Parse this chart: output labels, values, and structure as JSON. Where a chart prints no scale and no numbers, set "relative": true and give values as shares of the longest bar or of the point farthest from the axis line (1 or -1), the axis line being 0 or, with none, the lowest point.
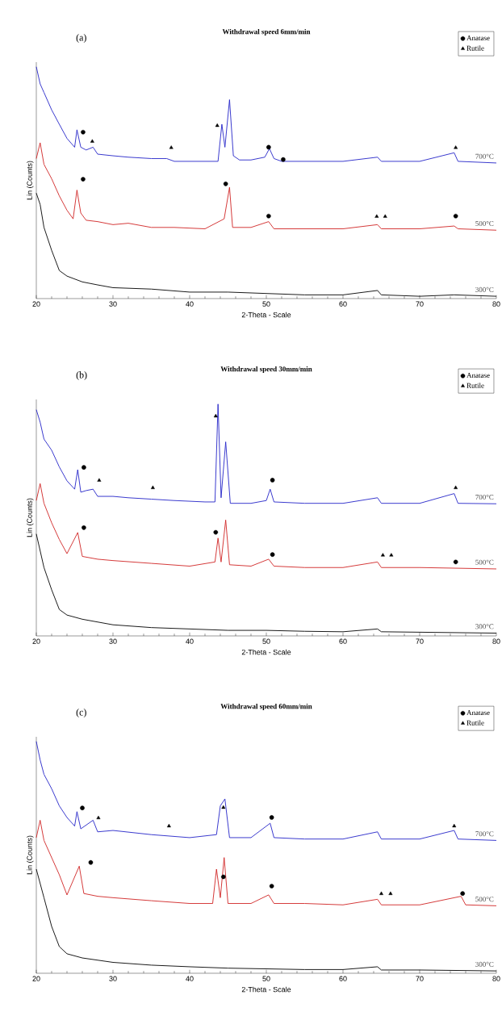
{
  "chart_data": [
    {
      "type": "line",
      "title": "Withdrawal speed 6mm/min",
      "xlabel": "2-Theta - Scale",
      "ylabel": "Lin (Counts)",
      "annotations": [
        "(a)"
      ],
      "xlim": [
        20,
        80
      ],
      "xticks": [
        20,
        30,
        40,
        50,
        60,
        70,
        80
      ],
      "relative": true,
      "tick_labels": "x",
      "legend": "top right",
      "marker": "none",
      "series": [
        {
          "name": "700°C",
          "color": "#2424c8",
          "x": [
            20,
            20.5,
            21,
            22,
            23,
            24,
            25,
            25.3,
            25.8,
            26.5,
            27.4,
            28,
            30,
            32,
            35,
            37,
            38,
            40,
            42,
            43,
            43.7,
            44.2,
            44.6,
            45.2,
            45.7,
            46.5,
            48,
            49.8,
            50.4,
            51,
            52,
            55,
            60,
            64.5,
            65,
            70,
            74.5,
            75,
            80
          ],
          "values": [
            1.0,
            0.926,
            0.889,
            0.814,
            0.752,
            0.691,
            0.653,
            0.728,
            0.653,
            0.641,
            0.653,
            0.623,
            0.616,
            0.61,
            0.604,
            0.604,
            0.592,
            0.592,
            0.592,
            0.592,
            0.592,
            0.752,
            0.653,
            0.858,
            0.616,
            0.598,
            0.598,
            0.61,
            0.647,
            0.604,
            0.592,
            0.592,
            0.592,
            0.61,
            0.592,
            0.592,
            0.629,
            0.592,
            0.585
          ]
        },
        {
          "name": "500°C",
          "color": "#d02424",
          "x": [
            20,
            20.5,
            21,
            22,
            23,
            24,
            24.8,
            25.3,
            25.8,
            26.5,
            28,
            30,
            32,
            35,
            38,
            42,
            44.5,
            45.2,
            45.6,
            48,
            50.3,
            51,
            55,
            60,
            64.5,
            65,
            70,
            74.5,
            75,
            80
          ],
          "values": [
            0.604,
            0.672,
            0.579,
            0.517,
            0.443,
            0.381,
            0.344,
            0.468,
            0.369,
            0.338,
            0.332,
            0.319,
            0.325,
            0.307,
            0.307,
            0.301,
            0.344,
            0.48,
            0.307,
            0.307,
            0.332,
            0.301,
            0.301,
            0.301,
            0.319,
            0.301,
            0.301,
            0.313,
            0.301,
            0.295
          ]
        },
        {
          "name": "300°C",
          "color": "#000000",
          "x": [
            20,
            20.5,
            21,
            22,
            23,
            24,
            26,
            28,
            30,
            35,
            40,
            45,
            50,
            55,
            60,
            64.5,
            65,
            70,
            74.5,
            80
          ],
          "values": [
            0.455,
            0.406,
            0.307,
            0.208,
            0.121,
            0.097,
            0.072,
            0.059,
            0.047,
            0.041,
            0.028,
            0.028,
            0.022,
            0.016,
            0.016,
            0.035,
            0.016,
            0.01,
            0.016,
            0.01
          ]
        },
        {
          "name": "Anatase",
          "type": "scatter",
          "marker": "circle",
          "color": "#000000",
          "x": [
            26.1,
            50.3,
            52.2,
            26.1,
            44.7,
            50.3,
            74.7
          ],
          "values": [
            0.718,
            0.653,
            0.6,
            0.515,
            0.495,
            0.356,
            0.356
          ]
        },
        {
          "name": "Rutile",
          "type": "scatter",
          "marker": "triangle",
          "color": "#000000",
          "x": [
            27.3,
            37.6,
            43.6,
            74.7,
            64.4,
            65.5
          ],
          "values": [
            0.678,
            0.651,
            0.746,
            0.651,
            0.354,
            0.354
          ]
        }
      ]
    },
    {
      "type": "line",
      "title": "Withdrawal speed 30mm/min",
      "xlabel": "2-Theta - Scale",
      "ylabel": "Lin (Counts)",
      "annotations": [
        "(b)"
      ],
      "xlim": [
        20,
        80
      ],
      "xticks": [
        20,
        30,
        40,
        50,
        60,
        70,
        80
      ],
      "relative": true,
      "tick_labels": "x",
      "legend": "top right",
      "marker": "none",
      "series": [
        {
          "name": "700°C",
          "color": "#2424c8",
          "x": [
            20,
            20.5,
            21,
            22,
            23,
            24,
            25,
            25.4,
            25.8,
            26.5,
            27.4,
            28,
            30,
            32,
            35,
            38,
            42,
            43.3,
            43.7,
            44.1,
            44.7,
            45.3,
            48,
            50,
            50.5,
            51,
            55,
            60,
            64.5,
            65,
            70,
            74.5,
            75,
            80
          ],
          "values": [
            0.976,
            0.922,
            0.849,
            0.801,
            0.729,
            0.669,
            0.633,
            0.717,
            0.62,
            0.627,
            0.633,
            0.602,
            0.602,
            0.596,
            0.59,
            0.584,
            0.578,
            0.578,
            1.0,
            0.596,
            0.837,
            0.572,
            0.572,
            0.584,
            0.633,
            0.578,
            0.572,
            0.572,
            0.596,
            0.572,
            0.572,
            0.614,
            0.572,
            0.57
          ]
        },
        {
          "name": "500°C",
          "color": "#d02424",
          "x": [
            20,
            20.5,
            21,
            22,
            23,
            24,
            25.4,
            26,
            28,
            30,
            35,
            40,
            43.3,
            43.7,
            44.1,
            44.7,
            45.2,
            48,
            50.3,
            51,
            55,
            60,
            64.5,
            65,
            70,
            80
          ],
          "values": [
            0.584,
            0.657,
            0.572,
            0.488,
            0.416,
            0.355,
            0.446,
            0.343,
            0.331,
            0.325,
            0.313,
            0.301,
            0.319,
            0.422,
            0.319,
            0.5,
            0.307,
            0.301,
            0.331,
            0.301,
            0.295,
            0.295,
            0.319,
            0.295,
            0.295,
            0.289
          ]
        },
        {
          "name": "300°C",
          "color": "#000000",
          "x": [
            20,
            21,
            22,
            23,
            24,
            26,
            30,
            35,
            40,
            45,
            50,
            55,
            60,
            64.5,
            65,
            70,
            80
          ],
          "values": [
            0.44,
            0.295,
            0.199,
            0.114,
            0.09,
            0.072,
            0.048,
            0.036,
            0.03,
            0.024,
            0.024,
            0.02,
            0.018,
            0.03,
            0.018,
            0.016,
            0.012
          ]
        },
        {
          "name": "Anatase",
          "type": "scatter",
          "marker": "circle",
          "color": "#000000",
          "x": [
            26.2,
            50.8,
            26.2,
            43.4,
            50.8,
            74.7
          ],
          "values": [
            0.727,
            0.672,
            0.467,
            0.447,
            0.351,
            0.319
          ]
        },
        {
          "name": "Rutile",
          "type": "scatter",
          "marker": "triangle",
          "color": "#000000",
          "x": [
            28.2,
            35.2,
            43.4,
            74.7,
            65.2,
            66.3
          ],
          "values": [
            0.671,
            0.639,
            0.948,
            0.639,
            0.348,
            0.348
          ]
        }
      ]
    },
    {
      "type": "line",
      "title": "Withdrawal speed 60mm/min",
      "xlabel": "2-Theta - Scale",
      "ylabel": "Lin (Counts)",
      "annotations": [
        "(c)"
      ],
      "xlim": [
        20,
        80
      ],
      "xticks": [
        20,
        30,
        40,
        50,
        60,
        70,
        80
      ],
      "relative": true,
      "tick_labels": "x",
      "legend": "top right",
      "marker": "none",
      "series": [
        {
          "name": "700°C",
          "color": "#2424c8",
          "x": [
            20,
            20.5,
            21,
            22,
            23,
            24,
            25,
            25.3,
            25.8,
            27.4,
            28,
            30,
            35,
            40,
            43.5,
            44,
            44.6,
            45.2,
            48,
            50.5,
            51,
            55,
            60,
            64.5,
            65,
            70,
            74.5,
            75,
            80
          ],
          "values": [
            1.0,
            0.92,
            0.858,
            0.796,
            0.722,
            0.672,
            0.635,
            0.697,
            0.623,
            0.66,
            0.61,
            0.616,
            0.598,
            0.585,
            0.598,
            0.722,
            0.752,
            0.585,
            0.585,
            0.647,
            0.585,
            0.579,
            0.579,
            0.61,
            0.579,
            0.579,
            0.616,
            0.579,
            0.573
          ]
        },
        {
          "name": "500°C",
          "color": "#d02424",
          "x": [
            20,
            20.5,
            21,
            22,
            23,
            24,
            25.6,
            26.2,
            28,
            30,
            35,
            40,
            43,
            43.5,
            44,
            44.5,
            45,
            48,
            50.3,
            51,
            55,
            60,
            64.5,
            65,
            70,
            75.4,
            76,
            80
          ],
          "values": [
            0.585,
            0.66,
            0.573,
            0.499,
            0.425,
            0.338,
            0.462,
            0.344,
            0.332,
            0.326,
            0.313,
            0.301,
            0.301,
            0.449,
            0.326,
            0.499,
            0.301,
            0.301,
            0.338,
            0.301,
            0.301,
            0.295,
            0.319,
            0.295,
            0.295,
            0.332,
            0.295,
            0.291
          ]
        },
        {
          "name": "300°C",
          "color": "#000000",
          "x": [
            20,
            21,
            22,
            23,
            24,
            26,
            30,
            35,
            40,
            45,
            50,
            55,
            60,
            64.5,
            65,
            70,
            80
          ],
          "values": [
            0.449,
            0.326,
            0.202,
            0.115,
            0.084,
            0.066,
            0.047,
            0.035,
            0.028,
            0.022,
            0.019,
            0.016,
            0.016,
            0.028,
            0.014,
            0.014,
            0.01
          ]
        },
        {
          "name": "Anatase",
          "type": "scatter",
          "marker": "circle",
          "color": "#000000",
          "x": [
            26.0,
            50.7,
            27.1,
            44.4,
            50.7,
            75.6
          ],
          "values": [
            0.713,
            0.672,
            0.478,
            0.416,
            0.376,
            0.344
          ]
        },
        {
          "name": "Rutile",
          "type": "scatter",
          "marker": "triangle",
          "color": "#000000",
          "x": [
            28.1,
            37.3,
            44.4,
            74.5,
            65.0,
            66.2
          ],
          "values": [
            0.67,
            0.635,
            0.715,
            0.635,
            0.343,
            0.343
          ]
        }
      ]
    }
  ]
}
